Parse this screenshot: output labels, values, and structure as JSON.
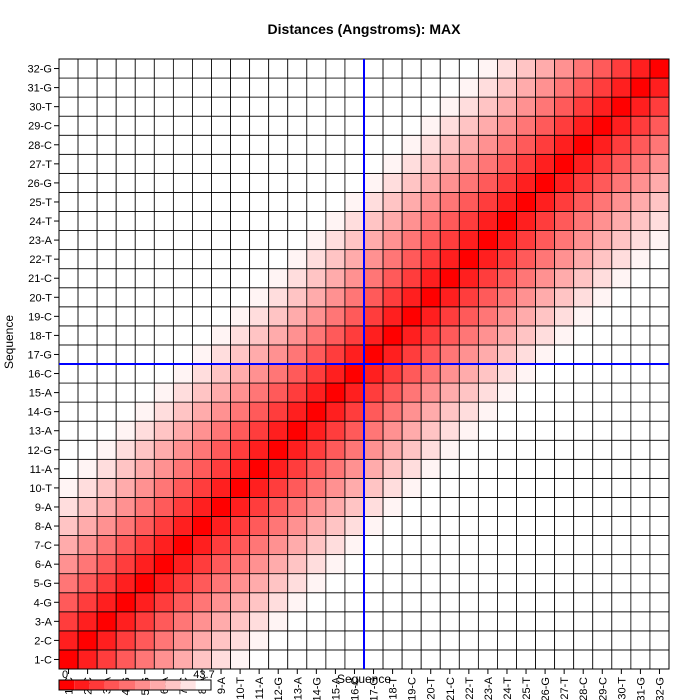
{
  "chart_data": {
    "type": "heatmap",
    "title": "Distances (Angstroms):  MAX",
    "xlabel": "Sequence",
    "ylabel": "Sequence",
    "labels": [
      "1-C",
      "2-C",
      "3-A",
      "4-G",
      "5-G",
      "6-A",
      "7-C",
      "8-A",
      "9-A",
      "10-T",
      "11-A",
      "12-G",
      "13-A",
      "14-G",
      "15-A",
      "16-C",
      "17-G",
      "18-T",
      "19-C",
      "20-T",
      "21-C",
      "22-T",
      "23-A",
      "24-T",
      "25-T",
      "26-G",
      "27-T",
      "28-C",
      "29-C",
      "30-T",
      "31-G",
      "32-G"
    ],
    "diagonal_value": 0,
    "neighbor_step": 4.0,
    "max_distance": 43.7,
    "colormap": {
      "low": "#ff0000",
      "high": "#ffffff"
    },
    "colorbar": {
      "min_label": "0",
      "max_label": "43.7"
    },
    "marker": {
      "label": "16-C",
      "color": "#0000ff"
    },
    "grid": true
  }
}
